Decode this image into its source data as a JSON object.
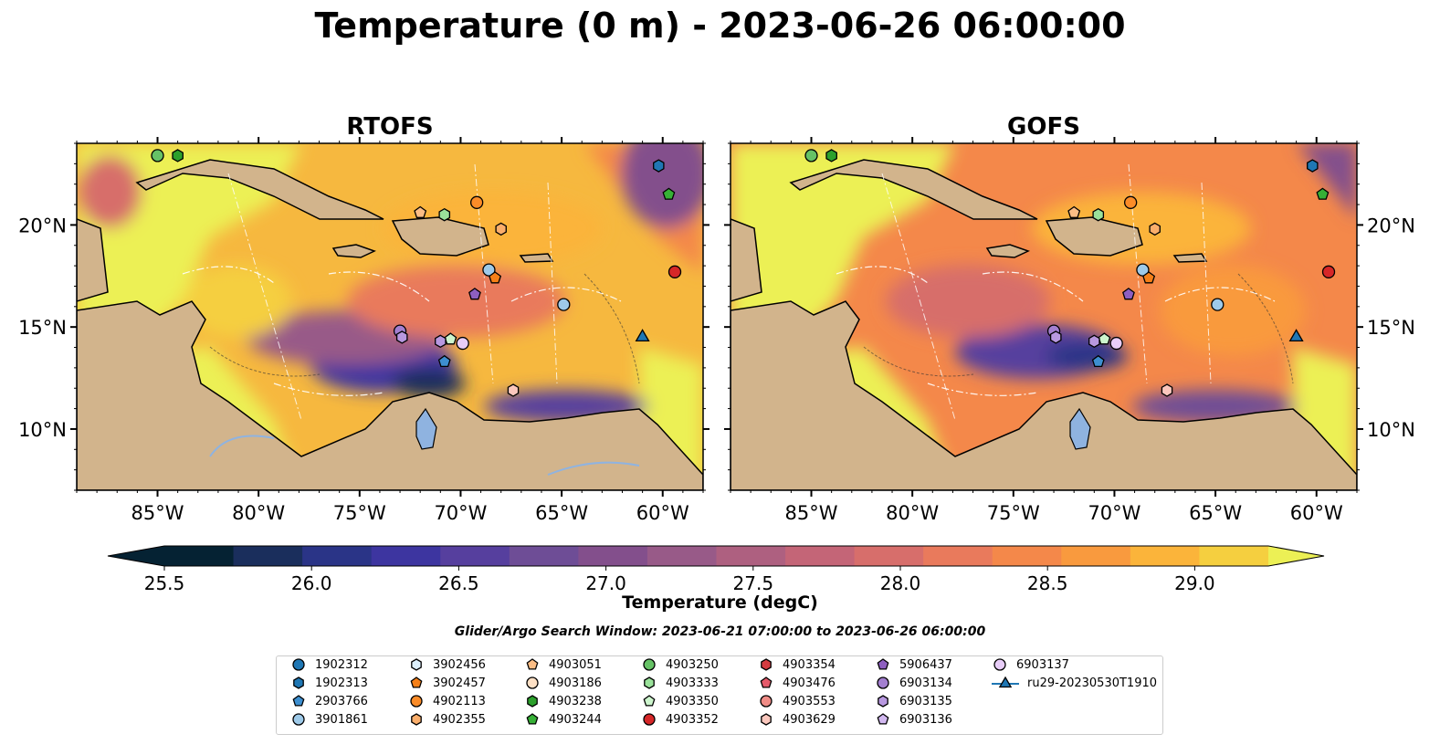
{
  "suptitle": "Temperature (0 m) - 2023-06-26 06:00:00",
  "colorbar": {
    "label": "Temperature (degC)",
    "ticks": [
      "25.5",
      "26.0",
      "26.5",
      "27.0",
      "27.5",
      "28.0",
      "28.5",
      "29.0"
    ],
    "range": [
      25.5,
      29.25
    ],
    "colors": [
      "#052233",
      "#1a2e5c",
      "#2a3487",
      "#3d35a0",
      "#563f9e",
      "#6e4d96",
      "#834f8c",
      "#985a88",
      "#ae6080",
      "#c46577",
      "#d76e6b",
      "#e97a5c",
      "#f4884a",
      "#f99a3e",
      "#fbb43a",
      "#f5cf3f",
      "#ecf055"
    ]
  },
  "search_window": "Glider/Argo Search Window: 2023-06-21 07:00:00 to 2023-06-26 06:00:00",
  "chart_data": [
    {
      "type": "heatmap",
      "title": "RTOFS",
      "x_ticks": [
        "85°W",
        "80°W",
        "75°W",
        "70°W",
        "65°W",
        "60°W"
      ],
      "y_ticks": [
        "20°N",
        "15°N",
        "10°N"
      ],
      "xlim": [
        -89,
        -58
      ],
      "ylim": [
        7,
        24
      ],
      "variable": "Temperature (degC)",
      "points": [
        {
          "id": "4903250",
          "lon": -85.0,
          "lat": 23.4
        },
        {
          "id": "4903238",
          "lon": -84.0,
          "lat": 23.4
        },
        {
          "id": "1902313",
          "lon": -60.2,
          "lat": 22.9
        },
        {
          "id": "4903244",
          "lon": -59.7,
          "lat": 21.5
        },
        {
          "id": "4902113",
          "lon": -69.2,
          "lat": 21.1
        },
        {
          "id": "4903051",
          "lon": -72.0,
          "lat": 20.6
        },
        {
          "id": "4903333",
          "lon": -70.8,
          "lat": 20.5
        },
        {
          "id": "4902355",
          "lon": -68.0,
          "lat": 19.8
        },
        {
          "id": "3901861",
          "lon": -68.6,
          "lat": 17.8
        },
        {
          "id": "3902457",
          "lon": -68.3,
          "lat": 17.4
        },
        {
          "id": "4903352",
          "lon": -59.4,
          "lat": 17.7
        },
        {
          "id": "5906437",
          "lon": -69.3,
          "lat": 16.6
        },
        {
          "id": "3901861",
          "lon": -64.9,
          "lat": 16.1
        },
        {
          "id": "6903134",
          "lon": -73.0,
          "lat": 14.8
        },
        {
          "id": "6903135",
          "lon": -72.9,
          "lat": 14.5
        },
        {
          "id": "4903350",
          "lon": -70.5,
          "lat": 14.4
        },
        {
          "id": "6903135",
          "lon": -71.0,
          "lat": 14.3
        },
        {
          "id": "6903137",
          "lon": -69.9,
          "lat": 14.2
        },
        {
          "id": "2903766",
          "lon": -70.8,
          "lat": 13.3
        },
        {
          "id": "4903629",
          "lon": -67.4,
          "lat": 11.9
        },
        {
          "id": "ru29-20230530T1910",
          "lon": -61.0,
          "lat": 14.5
        }
      ]
    },
    {
      "type": "heatmap",
      "title": "GOFS",
      "x_ticks": [
        "85°W",
        "80°W",
        "75°W",
        "70°W",
        "65°W",
        "60°W"
      ],
      "y_ticks": [
        "20°N",
        "15°N",
        "10°N"
      ],
      "xlim": [
        -89,
        -58
      ],
      "ylim": [
        7,
        24
      ],
      "variable": "Temperature (degC)",
      "points": [
        {
          "id": "4903250",
          "lon": -85.0,
          "lat": 23.4
        },
        {
          "id": "4903238",
          "lon": -84.0,
          "lat": 23.4
        },
        {
          "id": "1902313",
          "lon": -60.2,
          "lat": 22.9
        },
        {
          "id": "4903244",
          "lon": -59.7,
          "lat": 21.5
        },
        {
          "id": "4902113",
          "lon": -69.2,
          "lat": 21.1
        },
        {
          "id": "4903051",
          "lon": -72.0,
          "lat": 20.6
        },
        {
          "id": "4903333",
          "lon": -70.8,
          "lat": 20.5
        },
        {
          "id": "4902355",
          "lon": -68.0,
          "lat": 19.8
        },
        {
          "id": "3901861",
          "lon": -68.6,
          "lat": 17.8
        },
        {
          "id": "3902457",
          "lon": -68.3,
          "lat": 17.4
        },
        {
          "id": "4903352",
          "lon": -59.4,
          "lat": 17.7
        },
        {
          "id": "5906437",
          "lon": -69.3,
          "lat": 16.6
        },
        {
          "id": "3901861",
          "lon": -64.9,
          "lat": 16.1
        },
        {
          "id": "6903134",
          "lon": -73.0,
          "lat": 14.8
        },
        {
          "id": "6903135",
          "lon": -72.9,
          "lat": 14.5
        },
        {
          "id": "4903350",
          "lon": -70.5,
          "lat": 14.4
        },
        {
          "id": "6903135",
          "lon": -71.0,
          "lat": 14.3
        },
        {
          "id": "6903137",
          "lon": -69.9,
          "lat": 14.2
        },
        {
          "id": "2903766",
          "lon": -70.8,
          "lat": 13.3
        },
        {
          "id": "4903629",
          "lon": -67.4,
          "lat": 11.9
        },
        {
          "id": "ru29-20230530T1910",
          "lon": -61.0,
          "lat": 14.5
        }
      ]
    }
  ],
  "legend": [
    {
      "label": "1902312",
      "marker": "circle",
      "color": "#1f77b4"
    },
    {
      "label": "1902313",
      "marker": "hexagon",
      "color": "#1f77b4"
    },
    {
      "label": "2903766",
      "marker": "pentagon",
      "color": "#3d8fd0"
    },
    {
      "label": "3901861",
      "marker": "circle",
      "color": "#9ecae9"
    },
    {
      "label": "3902456",
      "marker": "hexagon",
      "color": "#dceffb"
    },
    {
      "label": "3902457",
      "marker": "pentagon",
      "color": "#f57f17"
    },
    {
      "label": "4902113",
      "marker": "circle",
      "color": "#fb8c28"
    },
    {
      "label": "4902355",
      "marker": "hexagon",
      "color": "#fbae6b"
    },
    {
      "label": "4903051",
      "marker": "pentagon",
      "color": "#fbbd85"
    },
    {
      "label": "4903186",
      "marker": "circle",
      "color": "#fde0c5"
    },
    {
      "label": "4903238",
      "marker": "hexagon",
      "color": "#2ca02c"
    },
    {
      "label": "4903244",
      "marker": "pentagon",
      "color": "#36b036"
    },
    {
      "label": "4903250",
      "marker": "circle",
      "color": "#66c266"
    },
    {
      "label": "4903333",
      "marker": "hexagon",
      "color": "#9ae29a"
    },
    {
      "label": "4903350",
      "marker": "pentagon",
      "color": "#cdf5cd"
    },
    {
      "label": "4903352",
      "marker": "circle",
      "color": "#d62728"
    },
    {
      "label": "4903354",
      "marker": "hexagon",
      "color": "#d43b40"
    },
    {
      "label": "4903476",
      "marker": "pentagon",
      "color": "#e45a6a"
    },
    {
      "label": "4903553",
      "marker": "circle",
      "color": "#f08c86"
    },
    {
      "label": "4903629",
      "marker": "hexagon",
      "color": "#fbc7bd"
    },
    {
      "label": "5906437",
      "marker": "pentagon",
      "color": "#8e5fc0"
    },
    {
      "label": "6903134",
      "marker": "circle",
      "color": "#a37fd0"
    },
    {
      "label": "6903135",
      "marker": "hexagon",
      "color": "#b898e0"
    },
    {
      "label": "6903136",
      "marker": "pentagon",
      "color": "#d2b8f0"
    },
    {
      "label": "6903137",
      "marker": "circle",
      "color": "#e8cdf8"
    },
    {
      "label": "ru29-20230530T1910",
      "marker": "triangle-line",
      "color": "#1f77b4"
    }
  ]
}
